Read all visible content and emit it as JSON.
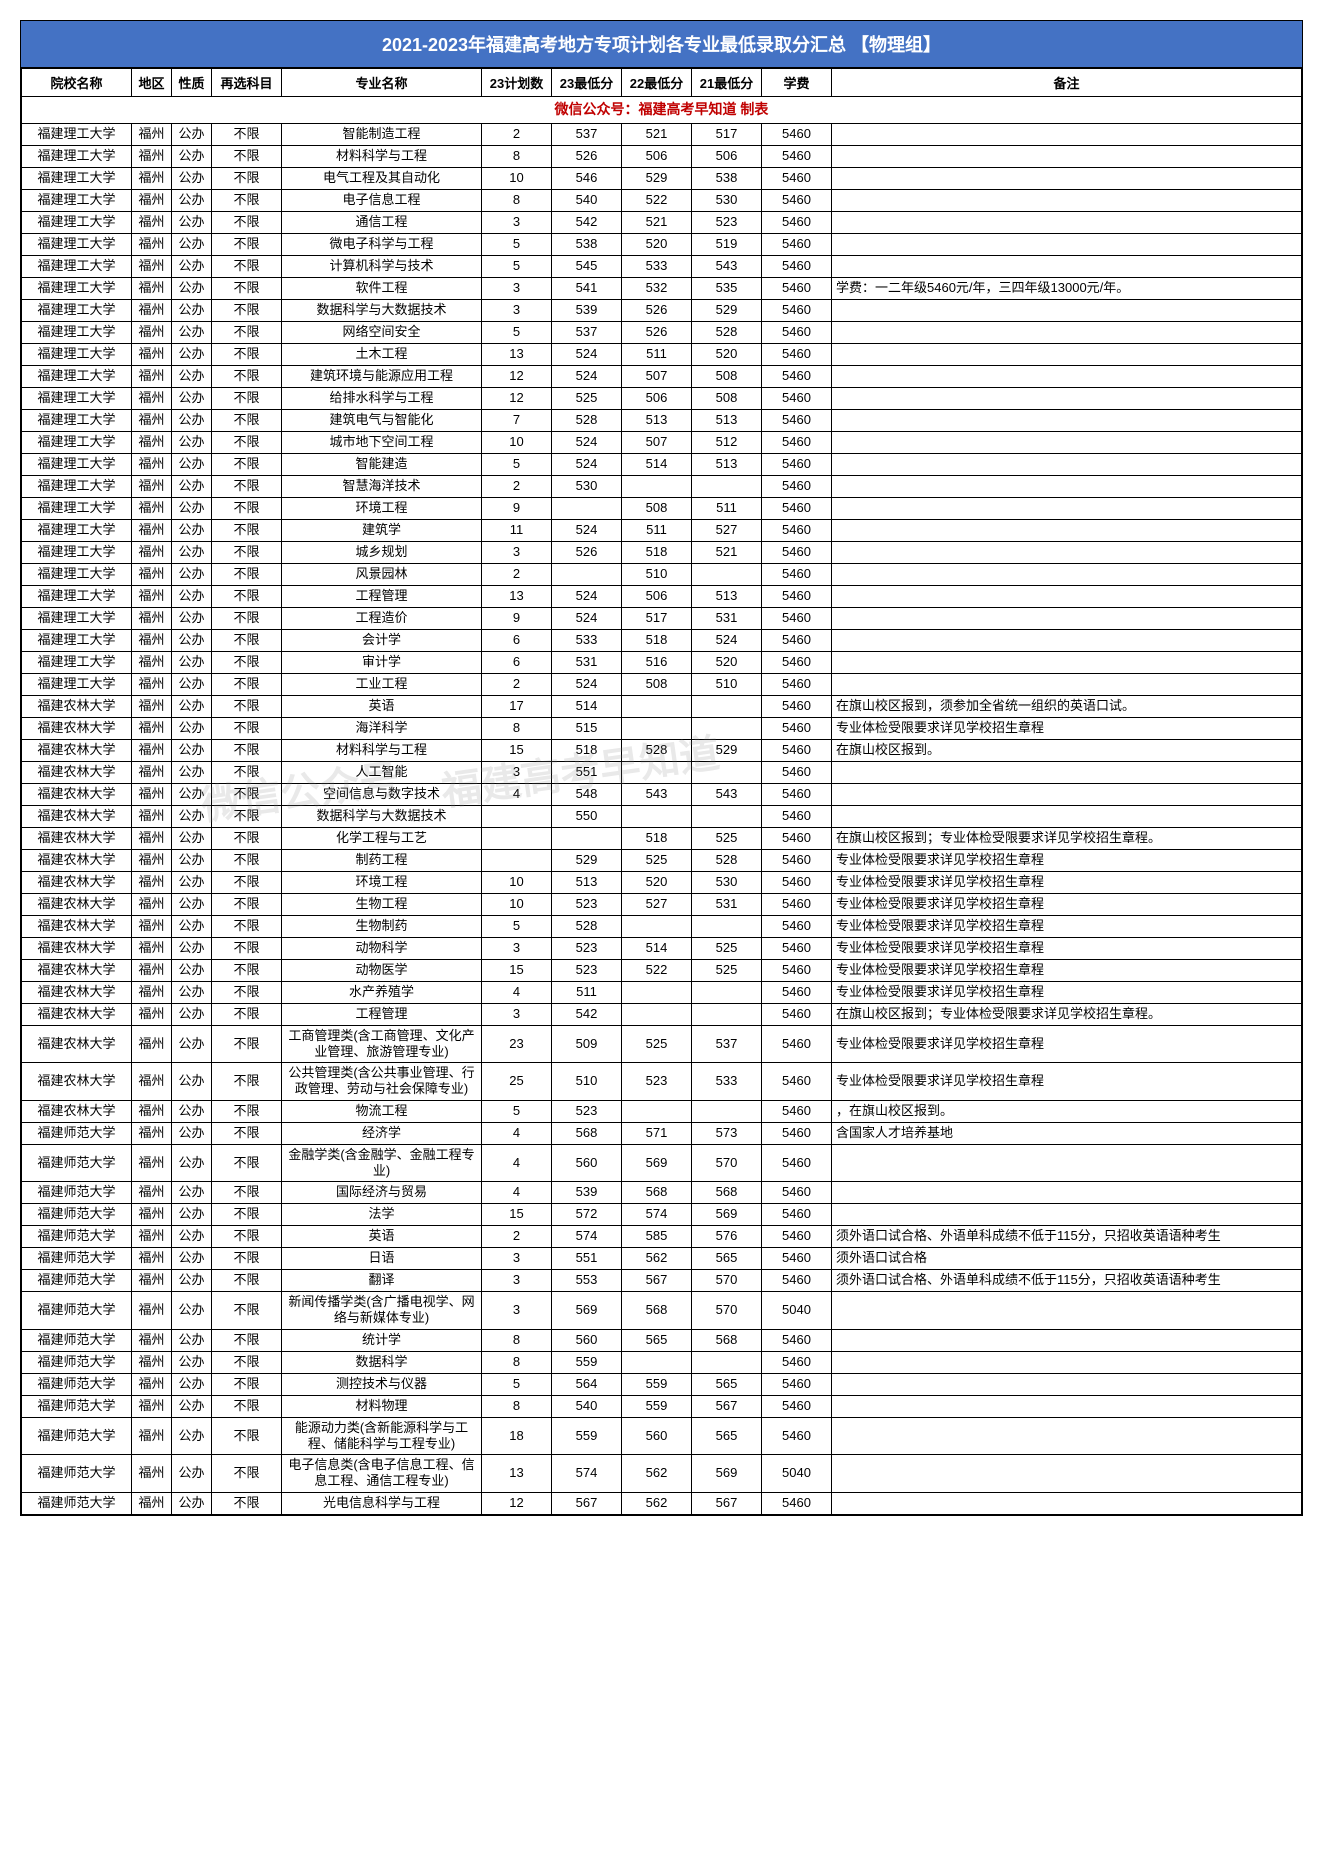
{
  "title": "2021-2023年福建高考地方专项计划各专业最低录取分汇总 【物理组】",
  "subtitle": "微信公众号：福建高考早知道  制表",
  "watermark1": "微信公众号",
  "watermark2": "福建高考早知道",
  "columns": [
    "院校名称",
    "地区",
    "性质",
    "再选科目",
    "专业名称",
    "23计划数",
    "23最低分",
    "22最低分",
    "21最低分",
    "学费",
    "备注"
  ],
  "title_bg": "#4472c4",
  "title_color": "#ffffff",
  "subtitle_color": "#c00000",
  "border_color": "#000000",
  "fontsize_header": 18,
  "fontsize_body": 13,
  "rows": [
    [
      "福建理工大学",
      "福州",
      "公办",
      "不限",
      "智能制造工程",
      "2",
      "537",
      "521",
      "517",
      "5460",
      ""
    ],
    [
      "福建理工大学",
      "福州",
      "公办",
      "不限",
      "材料科学与工程",
      "8",
      "526",
      "506",
      "506",
      "5460",
      ""
    ],
    [
      "福建理工大学",
      "福州",
      "公办",
      "不限",
      "电气工程及其自动化",
      "10",
      "546",
      "529",
      "538",
      "5460",
      ""
    ],
    [
      "福建理工大学",
      "福州",
      "公办",
      "不限",
      "电子信息工程",
      "8",
      "540",
      "522",
      "530",
      "5460",
      ""
    ],
    [
      "福建理工大学",
      "福州",
      "公办",
      "不限",
      "通信工程",
      "3",
      "542",
      "521",
      "523",
      "5460",
      ""
    ],
    [
      "福建理工大学",
      "福州",
      "公办",
      "不限",
      "微电子科学与工程",
      "5",
      "538",
      "520",
      "519",
      "5460",
      ""
    ],
    [
      "福建理工大学",
      "福州",
      "公办",
      "不限",
      "计算机科学与技术",
      "5",
      "545",
      "533",
      "543",
      "5460",
      ""
    ],
    [
      "福建理工大学",
      "福州",
      "公办",
      "不限",
      "软件工程",
      "3",
      "541",
      "532",
      "535",
      "5460",
      "学费：一二年级5460元/年，三四年级13000元/年。"
    ],
    [
      "福建理工大学",
      "福州",
      "公办",
      "不限",
      "数据科学与大数据技术",
      "3",
      "539",
      "526",
      "529",
      "5460",
      ""
    ],
    [
      "福建理工大学",
      "福州",
      "公办",
      "不限",
      "网络空间安全",
      "5",
      "537",
      "526",
      "528",
      "5460",
      ""
    ],
    [
      "福建理工大学",
      "福州",
      "公办",
      "不限",
      "土木工程",
      "13",
      "524",
      "511",
      "520",
      "5460",
      ""
    ],
    [
      "福建理工大学",
      "福州",
      "公办",
      "不限",
      "建筑环境与能源应用工程",
      "12",
      "524",
      "507",
      "508",
      "5460",
      ""
    ],
    [
      "福建理工大学",
      "福州",
      "公办",
      "不限",
      "给排水科学与工程",
      "12",
      "525",
      "506",
      "508",
      "5460",
      ""
    ],
    [
      "福建理工大学",
      "福州",
      "公办",
      "不限",
      "建筑电气与智能化",
      "7",
      "528",
      "513",
      "513",
      "5460",
      ""
    ],
    [
      "福建理工大学",
      "福州",
      "公办",
      "不限",
      "城市地下空间工程",
      "10",
      "524",
      "507",
      "512",
      "5460",
      ""
    ],
    [
      "福建理工大学",
      "福州",
      "公办",
      "不限",
      "智能建造",
      "5",
      "524",
      "514",
      "513",
      "5460",
      ""
    ],
    [
      "福建理工大学",
      "福州",
      "公办",
      "不限",
      "智慧海洋技术",
      "2",
      "530",
      "",
      "",
      "5460",
      ""
    ],
    [
      "福建理工大学",
      "福州",
      "公办",
      "不限",
      "环境工程",
      "9",
      "",
      "508",
      "511",
      "5460",
      ""
    ],
    [
      "福建理工大学",
      "福州",
      "公办",
      "不限",
      "建筑学",
      "11",
      "524",
      "511",
      "527",
      "5460",
      ""
    ],
    [
      "福建理工大学",
      "福州",
      "公办",
      "不限",
      "城乡规划",
      "3",
      "526",
      "518",
      "521",
      "5460",
      ""
    ],
    [
      "福建理工大学",
      "福州",
      "公办",
      "不限",
      "风景园林",
      "2",
      "",
      "510",
      "",
      "5460",
      ""
    ],
    [
      "福建理工大学",
      "福州",
      "公办",
      "不限",
      "工程管理",
      "13",
      "524",
      "506",
      "513",
      "5460",
      ""
    ],
    [
      "福建理工大学",
      "福州",
      "公办",
      "不限",
      "工程造价",
      "9",
      "524",
      "517",
      "531",
      "5460",
      ""
    ],
    [
      "福建理工大学",
      "福州",
      "公办",
      "不限",
      "会计学",
      "6",
      "533",
      "518",
      "524",
      "5460",
      ""
    ],
    [
      "福建理工大学",
      "福州",
      "公办",
      "不限",
      "审计学",
      "6",
      "531",
      "516",
      "520",
      "5460",
      ""
    ],
    [
      "福建理工大学",
      "福州",
      "公办",
      "不限",
      "工业工程",
      "2",
      "524",
      "508",
      "510",
      "5460",
      ""
    ],
    [
      "福建农林大学",
      "福州",
      "公办",
      "不限",
      "英语",
      "17",
      "514",
      "",
      "",
      "5460",
      "在旗山校区报到，须参加全省统一组织的英语口试。"
    ],
    [
      "福建农林大学",
      "福州",
      "公办",
      "不限",
      "海洋科学",
      "8",
      "515",
      "",
      "",
      "5460",
      "专业体检受限要求详见学校招生章程"
    ],
    [
      "福建农林大学",
      "福州",
      "公办",
      "不限",
      "材料科学与工程",
      "15",
      "518",
      "528",
      "529",
      "5460",
      "在旗山校区报到。"
    ],
    [
      "福建农林大学",
      "福州",
      "公办",
      "不限",
      "人工智能",
      "3",
      "551",
      "",
      "",
      "5460",
      ""
    ],
    [
      "福建农林大学",
      "福州",
      "公办",
      "不限",
      "空间信息与数字技术",
      "4",
      "548",
      "543",
      "543",
      "5460",
      ""
    ],
    [
      "福建农林大学",
      "福州",
      "公办",
      "不限",
      "数据科学与大数据技术",
      "",
      "550",
      "",
      "",
      "5460",
      ""
    ],
    [
      "福建农林大学",
      "福州",
      "公办",
      "不限",
      "化学工程与工艺",
      "",
      "",
      "518",
      "525",
      "5460",
      "在旗山校区报到；专业体检受限要求详见学校招生章程。"
    ],
    [
      "福建农林大学",
      "福州",
      "公办",
      "不限",
      "制药工程",
      "",
      "529",
      "525",
      "528",
      "5460",
      "专业体检受限要求详见学校招生章程"
    ],
    [
      "福建农林大学",
      "福州",
      "公办",
      "不限",
      "环境工程",
      "10",
      "513",
      "520",
      "530",
      "5460",
      "专业体检受限要求详见学校招生章程"
    ],
    [
      "福建农林大学",
      "福州",
      "公办",
      "不限",
      "生物工程",
      "10",
      "523",
      "527",
      "531",
      "5460",
      "专业体检受限要求详见学校招生章程"
    ],
    [
      "福建农林大学",
      "福州",
      "公办",
      "不限",
      "生物制药",
      "5",
      "528",
      "",
      "",
      "5460",
      "专业体检受限要求详见学校招生章程"
    ],
    [
      "福建农林大学",
      "福州",
      "公办",
      "不限",
      "动物科学",
      "3",
      "523",
      "514",
      "525",
      "5460",
      "专业体检受限要求详见学校招生章程"
    ],
    [
      "福建农林大学",
      "福州",
      "公办",
      "不限",
      "动物医学",
      "15",
      "523",
      "522",
      "525",
      "5460",
      "专业体检受限要求详见学校招生章程"
    ],
    [
      "福建农林大学",
      "福州",
      "公办",
      "不限",
      "水产养殖学",
      "4",
      "511",
      "",
      "",
      "5460",
      "专业体检受限要求详见学校招生章程"
    ],
    [
      "福建农林大学",
      "福州",
      "公办",
      "不限",
      "工程管理",
      "3",
      "542",
      "",
      "",
      "5460",
      "在旗山校区报到；专业体检受限要求详见学校招生章程。"
    ],
    [
      "福建农林大学",
      "福州",
      "公办",
      "不限",
      "工商管理类(含工商管理、文化产业管理、旅游管理专业)",
      "23",
      "509",
      "525",
      "537",
      "5460",
      "专业体检受限要求详见学校招生章程"
    ],
    [
      "福建农林大学",
      "福州",
      "公办",
      "不限",
      "公共管理类(含公共事业管理、行政管理、劳动与社会保障专业)",
      "25",
      "510",
      "523",
      "533",
      "5460",
      "专业体检受限要求详见学校招生章程"
    ],
    [
      "福建农林大学",
      "福州",
      "公办",
      "不限",
      "物流工程",
      "5",
      "523",
      "",
      "",
      "5460",
      "，在旗山校区报到。"
    ],
    [
      "福建师范大学",
      "福州",
      "公办",
      "不限",
      "经济学",
      "4",
      "568",
      "571",
      "573",
      "5460",
      "含国家人才培养基地"
    ],
    [
      "福建师范大学",
      "福州",
      "公办",
      "不限",
      "金融学类(含金融学、金融工程专业)",
      "4",
      "560",
      "569",
      "570",
      "5460",
      ""
    ],
    [
      "福建师范大学",
      "福州",
      "公办",
      "不限",
      "国际经济与贸易",
      "4",
      "539",
      "568",
      "568",
      "5460",
      ""
    ],
    [
      "福建师范大学",
      "福州",
      "公办",
      "不限",
      "法学",
      "15",
      "572",
      "574",
      "569",
      "5460",
      ""
    ],
    [
      "福建师范大学",
      "福州",
      "公办",
      "不限",
      "英语",
      "2",
      "574",
      "585",
      "576",
      "5460",
      "须外语口试合格、外语单科成绩不低于115分，只招收英语语种考生"
    ],
    [
      "福建师范大学",
      "福州",
      "公办",
      "不限",
      "日语",
      "3",
      "551",
      "562",
      "565",
      "5460",
      "须外语口试合格"
    ],
    [
      "福建师范大学",
      "福州",
      "公办",
      "不限",
      "翻译",
      "3",
      "553",
      "567",
      "570",
      "5460",
      "须外语口试合格、外语单科成绩不低于115分，只招收英语语种考生"
    ],
    [
      "福建师范大学",
      "福州",
      "公办",
      "不限",
      "新闻传播学类(含广播电视学、网络与新媒体专业)",
      "3",
      "569",
      "568",
      "570",
      "5040",
      ""
    ],
    [
      "福建师范大学",
      "福州",
      "公办",
      "不限",
      "统计学",
      "8",
      "560",
      "565",
      "568",
      "5460",
      ""
    ],
    [
      "福建师范大学",
      "福州",
      "公办",
      "不限",
      "数据科学",
      "8",
      "559",
      "",
      "",
      "5460",
      ""
    ],
    [
      "福建师范大学",
      "福州",
      "公办",
      "不限",
      "测控技术与仪器",
      "5",
      "564",
      "559",
      "565",
      "5460",
      ""
    ],
    [
      "福建师范大学",
      "福州",
      "公办",
      "不限",
      "材料物理",
      "8",
      "540",
      "559",
      "567",
      "5460",
      ""
    ],
    [
      "福建师范大学",
      "福州",
      "公办",
      "不限",
      "能源动力类(含新能源科学与工程、储能科学与工程专业)",
      "18",
      "559",
      "560",
      "565",
      "5460",
      ""
    ],
    [
      "福建师范大学",
      "福州",
      "公办",
      "不限",
      "电子信息类(含电子信息工程、信息工程、通信工程专业)",
      "13",
      "574",
      "562",
      "569",
      "5040",
      ""
    ],
    [
      "福建师范大学",
      "福州",
      "公办",
      "不限",
      "光电信息科学与工程",
      "12",
      "567",
      "562",
      "567",
      "5460",
      ""
    ]
  ]
}
